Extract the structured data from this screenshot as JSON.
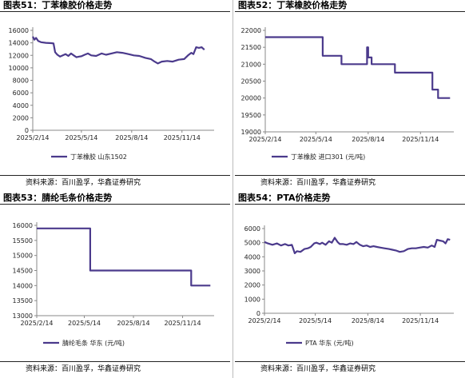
{
  "panels": [
    {
      "title": "图表51：丁苯橡胶价格走势",
      "source": "资料来源：百川盈孚，华鑫证券研究",
      "chart_data": {
        "type": "line",
        "x_ticks": [
          "2025/2/14",
          "2025/5/14",
          "2025/8/14",
          "2025/11/14"
        ],
        "xlim": [
          "2025/2/14",
          "2026/1/6"
        ],
        "ylim": [
          0,
          16000
        ],
        "y_ticks": [
          0,
          2000,
          4000,
          6000,
          8000,
          10000,
          12000,
          14000,
          16000
        ],
        "series": [
          {
            "name": "丁苯橡胶 山东1502",
            "color": "#4b3a8c",
            "points": [
              [
                "2025/2/14",
                15000
              ],
              [
                "2025/2/17",
                14500
              ],
              [
                "2025/2/20",
                14800
              ],
              [
                "2025/2/24",
                14300
              ],
              [
                "2025/3/1",
                14100
              ],
              [
                "2025/3/10",
                14000
              ],
              [
                "2025/3/20",
                13950
              ],
              [
                "2025/3/24",
                13900
              ],
              [
                "2025/3/27",
                12500
              ],
              [
                "2025/3/31",
                12100
              ],
              [
                "2025/4/5",
                11800
              ],
              [
                "2025/4/10",
                12000
              ],
              [
                "2025/4/15",
                12200
              ],
              [
                "2025/4/20",
                11900
              ],
              [
                "2025/4/25",
                12300
              ],
              [
                "2025/4/30",
                12000
              ],
              [
                "2025/5/5",
                11700
              ],
              [
                "2025/5/10",
                11800
              ],
              [
                "2025/5/14",
                11850
              ],
              [
                "2025/5/20",
                12100
              ],
              [
                "2025/5/26",
                12300
              ],
              [
                "2025/6/1",
                12000
              ],
              [
                "2025/6/10",
                11900
              ],
              [
                "2025/6/20",
                12300
              ],
              [
                "2025/6/28",
                12100
              ],
              [
                "2025/7/8",
                12300
              ],
              [
                "2025/7/18",
                12500
              ],
              [
                "2025/7/28",
                12400
              ],
              [
                "2025/8/8",
                12200
              ],
              [
                "2025/8/18",
                12000
              ],
              [
                "2025/8/28",
                11900
              ],
              [
                "2025/9/8",
                11600
              ],
              [
                "2025/9/18",
                11400
              ],
              [
                "2025/9/25",
                11000
              ],
              [
                "2025/10/1",
                10700
              ],
              [
                "2025/10/8",
                11000
              ],
              [
                "2025/10/18",
                11100
              ],
              [
                "2025/10/28",
                11000
              ],
              [
                "2025/11/8",
                11300
              ],
              [
                "2025/11/18",
                11400
              ],
              [
                "2025/11/25",
                12000
              ],
              [
                "2025/12/1",
                12400
              ],
              [
                "2025/12/5",
                12200
              ],
              [
                "2025/12/10",
                13300
              ],
              [
                "2025/12/15",
                13200
              ],
              [
                "2025/12/20",
                13300
              ],
              [
                "2025/12/25",
                12900
              ]
            ]
          }
        ]
      }
    },
    {
      "title": "图表52：丁苯橡胶价格走势",
      "source": "资料来源：百川盈孚，华鑫证券研究",
      "chart_data": {
        "type": "line",
        "x_ticks": [
          "2025/2/14",
          "2025/5/14",
          "2025/8/14",
          "2025/11/14"
        ],
        "xlim": [
          "2025/2/14",
          "2026/1/6"
        ],
        "ylim": [
          19000,
          22000
        ],
        "y_ticks": [
          19000,
          19500,
          20000,
          20500,
          21000,
          21500,
          22000
        ],
        "series": [
          {
            "name": "丁苯橡胶 进口301 (元/吨)",
            "color": "#4b3a8c",
            "points": [
              [
                "2025/2/14",
                21800
              ],
              [
                "2025/5/26",
                21800
              ],
              [
                "2025/5/26",
                21250
              ],
              [
                "2025/6/28",
                21250
              ],
              [
                "2025/6/28",
                21000
              ],
              [
                "2025/8/12",
                21000
              ],
              [
                "2025/8/12",
                21500
              ],
              [
                "2025/8/14",
                21500
              ],
              [
                "2025/8/14",
                21200
              ],
              [
                "2025/8/20",
                21200
              ],
              [
                "2025/8/20",
                21000
              ],
              [
                "2025/9/30",
                21000
              ],
              [
                "2025/9/30",
                20750
              ],
              [
                "2025/12/5",
                20750
              ],
              [
                "2025/12/5",
                20250
              ],
              [
                "2025/12/15",
                20250
              ],
              [
                "2025/12/15",
                20000
              ],
              [
                "2026/1/5",
                20000
              ]
            ]
          }
        ]
      }
    },
    {
      "title": "图表53：腈纶毛条价格走势",
      "source": "资料来源：百川盈孚，华鑫证券研究",
      "chart_data": {
        "type": "line",
        "x_ticks": [
          "2025/2/14",
          "2025/5/14",
          "2025/8/14",
          "2025/11/14"
        ],
        "xlim": [
          "2025/2/14",
          "2026/1/6"
        ],
        "ylim": [
          13000,
          16000
        ],
        "y_ticks": [
          13000,
          13500,
          14000,
          14500,
          15000,
          15500,
          16000
        ],
        "series": [
          {
            "name": "腈纶毛条 华东 (元/吨)",
            "color": "#4b3a8c",
            "points": [
              [
                "2025/2/14",
                15900
              ],
              [
                "2025/5/25",
                15900
              ],
              [
                "2025/5/25",
                14500
              ],
              [
                "2025/11/30",
                14500
              ],
              [
                "2025/11/30",
                14000
              ],
              [
                "2026/1/5",
                14000
              ]
            ]
          }
        ]
      }
    },
    {
      "title": "图表54：PTA价格走势",
      "source": "资料来源：百川盈孚，华鑫证券研究",
      "chart_data": {
        "type": "line",
        "x_ticks": [
          "2025/2/14",
          "2025/5/14",
          "2025/8/14",
          "2025/11/14"
        ],
        "xlim": [
          "2025/2/14",
          "2026/1/6"
        ],
        "ylim": [
          0,
          6000
        ],
        "y_ticks": [
          0,
          1000,
          2000,
          3000,
          4000,
          5000,
          6000
        ],
        "series": [
          {
            "name": "PTA 华东 (元/吨)",
            "color": "#4b3a8c",
            "points": [
              [
                "2025/2/14",
                5050
              ],
              [
                "2025/2/20",
                4950
              ],
              [
                "2025/2/28",
                4850
              ],
              [
                "2025/3/8",
                4950
              ],
              [
                "2025/3/15",
                4800
              ],
              [
                "2025/3/22",
                4900
              ],
              [
                "2025/3/28",
                4800
              ],
              [
                "2025/4/3",
                4850
              ],
              [
                "2025/4/8",
                4250
              ],
              [
                "2025/4/12",
                4400
              ],
              [
                "2025/4/18",
                4350
              ],
              [
                "2025/4/25",
                4550
              ],
              [
                "2025/5/1",
                4600
              ],
              [
                "2025/5/6",
                4700
              ],
              [
                "2025/5/12",
                4950
              ],
              [
                "2025/5/16",
                5000
              ],
              [
                "2025/5/22",
                4900
              ],
              [
                "2025/5/26",
                5000
              ],
              [
                "2025/6/1",
                4850
              ],
              [
                "2025/6/7",
                5100
              ],
              [
                "2025/6/12",
                5000
              ],
              [
                "2025/6/17",
                5350
              ],
              [
                "2025/6/22",
                5050
              ],
              [
                "2025/6/26",
                4900
              ],
              [
                "2025/7/2",
                4900
              ],
              [
                "2025/7/8",
                4850
              ],
              [
                "2025/7/14",
                4950
              ],
              [
                "2025/7/20",
                4900
              ],
              [
                "2025/7/25",
                5050
              ],
              [
                "2025/7/31",
                4850
              ],
              [
                "2025/8/6",
                4750
              ],
              [
                "2025/8/12",
                4800
              ],
              [
                "2025/8/18",
                4700
              ],
              [
                "2025/8/24",
                4750
              ],
              [
                "2025/8/30",
                4700
              ],
              [
                "2025/9/5",
                4650
              ],
              [
                "2025/9/12",
                4600
              ],
              [
                "2025/9/20",
                4550
              ],
              [
                "2025/9/26",
                4500
              ],
              [
                "2025/10/2",
                4450
              ],
              [
                "2025/10/9",
                4350
              ],
              [
                "2025/10/16",
                4400
              ],
              [
                "2025/10/23",
                4550
              ],
              [
                "2025/10/30",
                4600
              ],
              [
                "2025/11/6",
                4600
              ],
              [
                "2025/11/13",
                4650
              ],
              [
                "2025/11/20",
                4700
              ],
              [
                "2025/11/27",
                4650
              ],
              [
                "2025/12/4",
                4800
              ],
              [
                "2025/12/9",
                4700
              ],
              [
                "2025/12/13",
                5200
              ],
              [
                "2025/12/18",
                5150
              ],
              [
                "2025/12/24",
                5100
              ],
              [
                "2025/12/28",
                4950
              ],
              [
                "2026/1/1",
                5250
              ],
              [
                "2026/1/5",
                5200
              ]
            ]
          }
        ]
      }
    }
  ]
}
